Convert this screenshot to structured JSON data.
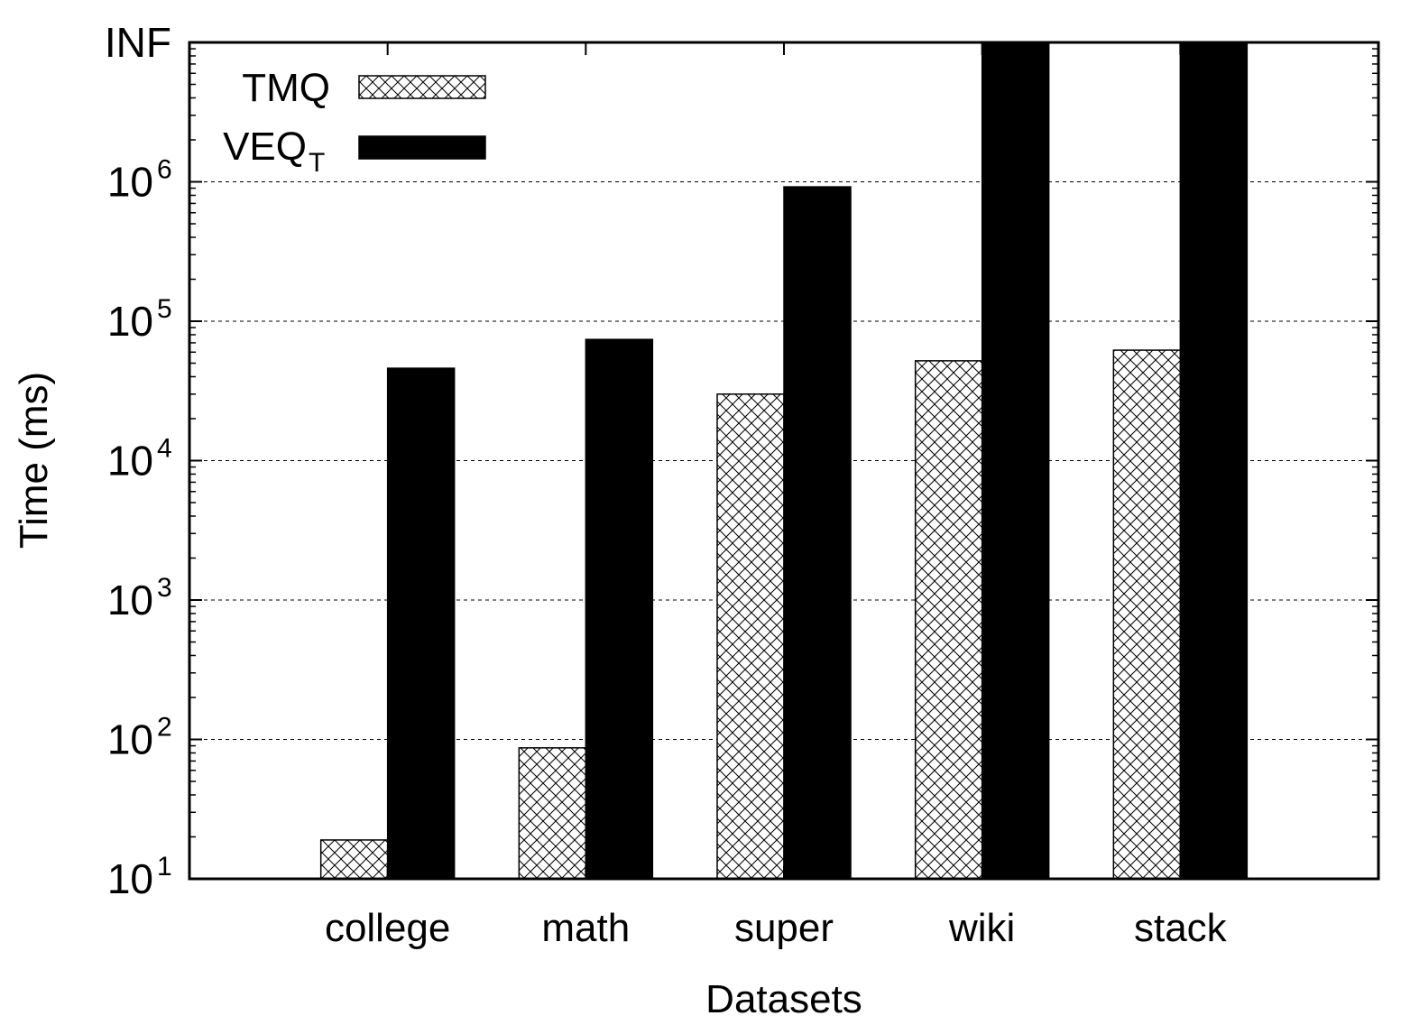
{
  "chart_data": {
    "type": "bar",
    "title": "",
    "xlabel": "Datasets",
    "ylabel": "Time (ms)",
    "yscale": "log",
    "ylim": [
      10,
      "INF"
    ],
    "ytick_labels": [
      {
        "base": "10",
        "exp": "1"
      },
      {
        "base": "10",
        "exp": "2"
      },
      {
        "base": "10",
        "exp": "3"
      },
      {
        "base": "10",
        "exp": "4"
      },
      {
        "base": "10",
        "exp": "5"
      },
      {
        "base": "10",
        "exp": "6"
      },
      {
        "base": "INF",
        "exp": ""
      }
    ],
    "categories": [
      "college",
      "math",
      "super",
      "wiki",
      "stack"
    ],
    "series": [
      {
        "name": "TMQ",
        "name_main": "TMQ",
        "name_sub": "",
        "pattern": "crosshatch",
        "color": "#000000",
        "values": [
          19,
          87,
          30000,
          52000,
          62000
        ]
      },
      {
        "name": "VEQ_T",
        "name_main": "VEQ",
        "name_sub": "T",
        "pattern": "solid",
        "color": "#000000",
        "values": [
          46000,
          74000,
          920000,
          "INF",
          "INF"
        ]
      }
    ],
    "legend_position": "top-left",
    "grid": true
  }
}
